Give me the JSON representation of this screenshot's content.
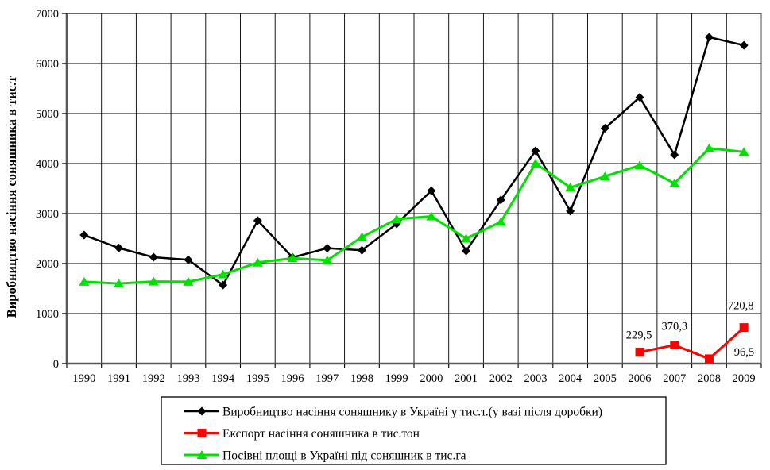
{
  "chart_data": {
    "type": "line",
    "title": "",
    "ylabel": "Виробництво насіння соняшника в тис.т",
    "xlabel": "",
    "ylim": [
      0,
      7000
    ],
    "yticks": [
      0,
      1000,
      2000,
      3000,
      4000,
      5000,
      6000,
      7000
    ],
    "grid": true,
    "legend_position": "bottom",
    "categories": [
      "1990",
      "1991",
      "1992",
      "1993",
      "1994",
      "1995",
      "1996",
      "1997",
      "1998",
      "1999",
      "2000",
      "2001",
      "2002",
      "2003",
      "2004",
      "2005",
      "2006",
      "2007",
      "2008",
      "2009"
    ],
    "series": [
      {
        "name": "Виробництво насіння соняшнику в Україні у тис.т.(у вазі після доробки)",
        "color": "#000000",
        "marker": "diamond",
        "line_width": 2.5,
        "values": [
          2571,
          2311,
          2127,
          2075,
          1569,
          2860,
          2123,
          2308,
          2266,
          2794,
          3457,
          2251,
          3271,
          4254,
          3050,
          4706,
          5324,
          4174,
          6526,
          6364
        ],
        "point_labels": []
      },
      {
        "name": "Експорт насіння соняшника в тис.тон",
        "color": "#FF0000",
        "marker": "square",
        "line_width": 3,
        "values": [
          null,
          null,
          null,
          null,
          null,
          null,
          null,
          null,
          null,
          null,
          null,
          null,
          null,
          null,
          null,
          null,
          229.5,
          370.3,
          96.5,
          720.8
        ],
        "point_labels": [
          {
            "index": 16,
            "text": "229,5",
            "dx": -1,
            "dy": -17
          },
          {
            "index": 17,
            "text": "370,3",
            "dx": 0,
            "dy": -19
          },
          {
            "index": 18,
            "text": "96,5",
            "dx": 44,
            "dy": -4
          },
          {
            "index": 19,
            "text": "720,8",
            "dx": -4,
            "dy": -23
          }
        ]
      },
      {
        "name": "Посівні площі в Україні під соняшник в тис.га",
        "color": "#00E100",
        "marker": "triangle",
        "line_width": 3,
        "values": [
          1636,
          1601,
          1641,
          1637,
          1784,
          2020,
          2107,
          2065,
          2531,
          2889,
          2943,
          2502,
          2834,
          4001,
          3521,
          3743,
          3964,
          3604,
          4306,
          4232
        ],
        "point_labels": []
      }
    ]
  },
  "colors": {
    "gridline": "#000000",
    "plot_border": "#808080",
    "axis": "#595959",
    "legend_border": "#000000",
    "background": "#FFFFFF"
  }
}
